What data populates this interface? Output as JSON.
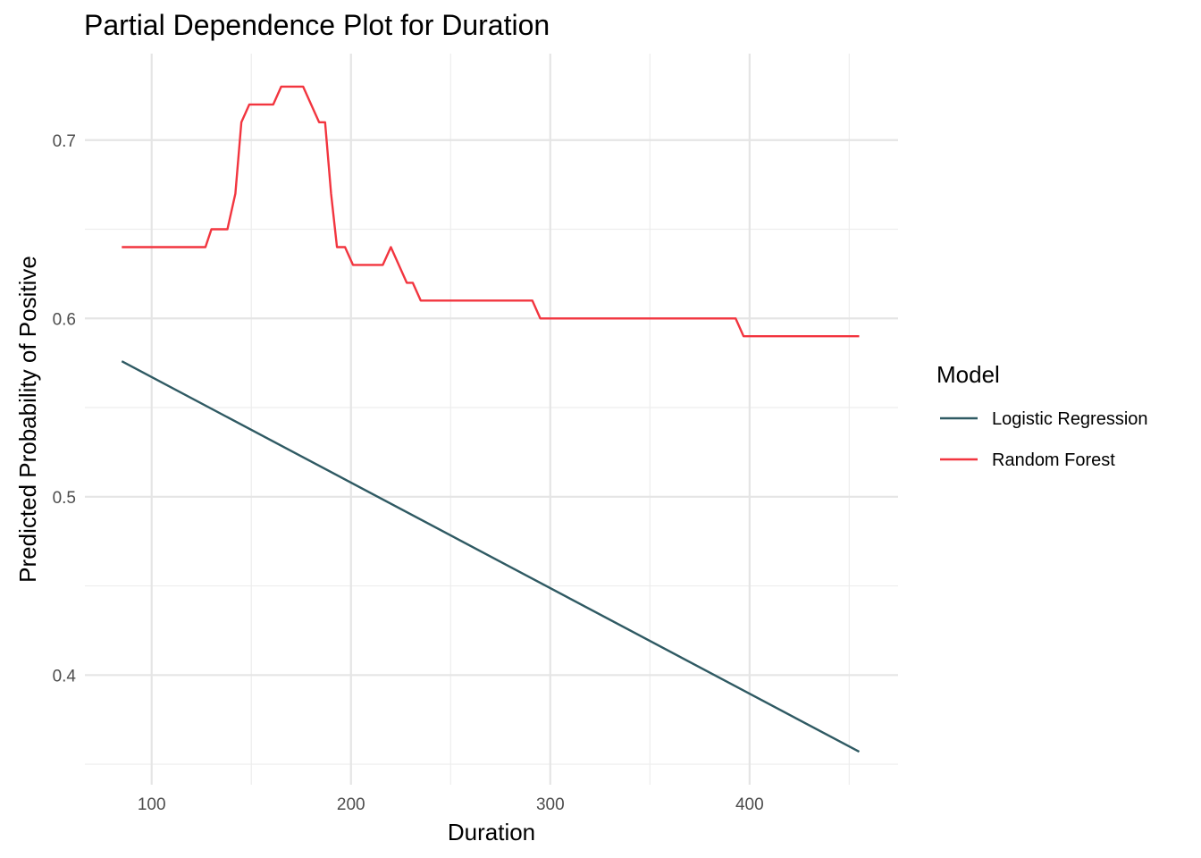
{
  "chart_data": {
    "type": "line",
    "title": "Partial Dependence Plot for Duration",
    "xlabel": "Duration",
    "ylabel": "Predicted Probability of Positive",
    "xlim": [
      66.5,
      474.5
    ],
    "ylim": [
      0.3385,
      0.7485
    ],
    "x_ticks": [
      100,
      200,
      300,
      400
    ],
    "x_tick_labels": [
      "100",
      "200",
      "300",
      "400"
    ],
    "x_minor": [
      150,
      250,
      350,
      450
    ],
    "y_ticks": [
      0.4,
      0.5,
      0.6,
      0.7
    ],
    "y_tick_labels": [
      "0.4",
      "0.5",
      "0.6",
      "0.7"
    ],
    "y_minor": [
      0.35,
      0.45,
      0.55,
      0.65
    ],
    "grid": true,
    "legend": {
      "title": "Model",
      "position": "right"
    },
    "series": [
      {
        "name": "Logistic Regression",
        "color": "#2f5a63",
        "points": [
          [
            85,
            0.576
          ],
          [
            455,
            0.357
          ]
        ]
      },
      {
        "name": "Random Forest",
        "color": "#f2353f",
        "points": [
          [
            85,
            0.64
          ],
          [
            127,
            0.64
          ],
          [
            130,
            0.65
          ],
          [
            138,
            0.65
          ],
          [
            142,
            0.67
          ],
          [
            145,
            0.71
          ],
          [
            149,
            0.72
          ],
          [
            161,
            0.72
          ],
          [
            165,
            0.73
          ],
          [
            176,
            0.73
          ],
          [
            184,
            0.71
          ],
          [
            187,
            0.71
          ],
          [
            190,
            0.67
          ],
          [
            193,
            0.64
          ],
          [
            197,
            0.64
          ],
          [
            201,
            0.63
          ],
          [
            216,
            0.63
          ],
          [
            220,
            0.64
          ],
          [
            228,
            0.62
          ],
          [
            231,
            0.62
          ],
          [
            235,
            0.61
          ],
          [
            291,
            0.61
          ],
          [
            295,
            0.6
          ],
          [
            393,
            0.6
          ],
          [
            397,
            0.59
          ],
          [
            455,
            0.59
          ]
        ]
      }
    ]
  }
}
